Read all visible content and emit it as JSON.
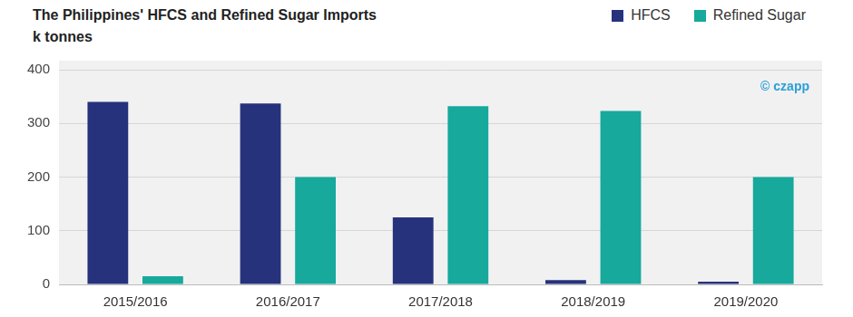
{
  "chart_data": {
    "type": "bar",
    "title": "The Philippines' HFCS and Refined Sugar Imports",
    "ylabel": "k tonnes",
    "annotations": [
      "© czapp"
    ],
    "categories": [
      "2015/2016",
      "2016/2017",
      "2017/2018",
      "2018/2019",
      "2019/2020"
    ],
    "series": [
      {
        "name": "HFCS",
        "color": "#27327c",
        "values": [
          340,
          337,
          125,
          8,
          5
        ]
      },
      {
        "name": "Refined Sugar",
        "color": "#16a99c",
        "values": [
          15,
          200,
          332,
          323,
          200
        ]
      }
    ],
    "ylim": [
      0,
      400
    ],
    "yticks": [
      0,
      100,
      200,
      300,
      400
    ],
    "grid": true,
    "legend": "top-right"
  }
}
